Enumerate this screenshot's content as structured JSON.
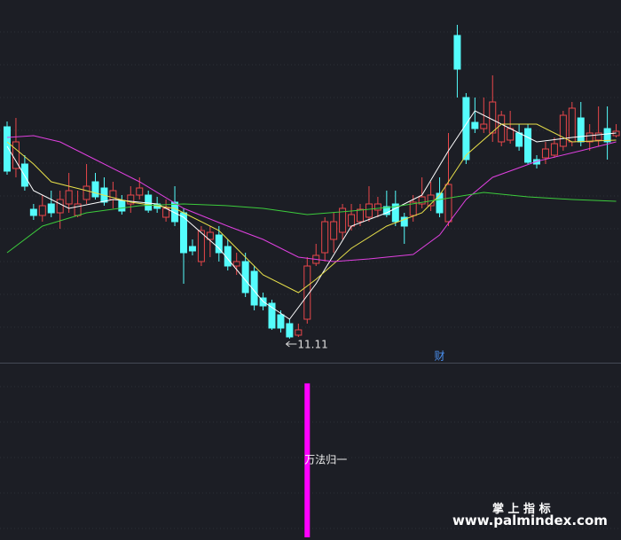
{
  "chart_data": [
    {
      "type": "candlestick",
      "ylim": [
        10.85,
        14.93
      ],
      "up_color": "#e8474a",
      "down_color": "#54fcfc",
      "open": [
        13.5,
        13.03,
        13.08,
        12.57,
        12.5,
        12.63,
        12.53,
        12.63,
        12.5,
        12.68,
        12.88,
        12.81,
        12.68,
        12.67,
        12.63,
        12.73,
        12.73,
        12.63,
        12.48,
        12.65,
        12.53,
        12.15,
        11.98,
        12.23,
        12.28,
        12.15,
        11.93,
        11.98,
        11.87,
        11.57,
        11.51,
        11.38,
        11.28,
        11.15,
        11.33,
        11.96,
        12.08,
        12.23,
        12.31,
        12.38,
        12.43,
        12.48,
        12.56,
        12.6,
        12.63,
        12.48,
        12.5,
        12.63,
        12.61,
        12.75,
        12.43,
        14.53,
        13.83,
        13.55,
        13.48,
        13.43,
        13.33,
        13.35,
        13.43,
        13.48,
        13.13,
        13.15,
        13.18,
        13.28,
        13.33,
        13.6,
        13.33,
        13.35,
        13.48,
        13.4
      ],
      "high": [
        13.56,
        13.6,
        13.18,
        12.63,
        12.73,
        12.78,
        12.78,
        12.98,
        12.78,
        13.08,
        12.98,
        12.93,
        12.88,
        12.73,
        12.83,
        12.93,
        12.78,
        12.71,
        12.68,
        12.83,
        12.58,
        12.23,
        12.38,
        12.38,
        12.38,
        12.23,
        12.08,
        12.08,
        11.93,
        11.63,
        11.55,
        11.43,
        11.33,
        11.28,
        12.03,
        12.18,
        12.48,
        12.53,
        12.63,
        12.63,
        12.63,
        12.83,
        12.71,
        12.78,
        12.78,
        12.53,
        12.73,
        12.93,
        12.88,
        12.93,
        13.43,
        14.65,
        13.88,
        13.83,
        13.83,
        14.08,
        13.68,
        13.68,
        13.53,
        13.53,
        13.18,
        13.33,
        13.38,
        13.68,
        13.78,
        13.78,
        13.53,
        13.73,
        13.73,
        13.53
      ],
      "low": [
        12.96,
        12.93,
        12.78,
        12.45,
        12.43,
        12.48,
        12.35,
        12.53,
        12.48,
        12.63,
        12.68,
        12.61,
        12.58,
        12.51,
        12.53,
        12.68,
        12.53,
        12.53,
        12.43,
        12.38,
        11.73,
        12.05,
        11.93,
        12.03,
        11.98,
        11.88,
        11.83,
        11.58,
        11.43,
        11.43,
        11.21,
        11.18,
        11.11,
        11.13,
        11.28,
        11.93,
        11.98,
        12.08,
        12.23,
        12.33,
        12.38,
        12.43,
        12.48,
        12.48,
        12.38,
        12.18,
        12.43,
        12.58,
        12.55,
        12.48,
        12.38,
        13.83,
        13.08,
        13.43,
        13.43,
        13.33,
        13.28,
        13.31,
        13.23,
        13.08,
        13.03,
        13.08,
        13.15,
        13.23,
        13.28,
        13.28,
        13.23,
        13.28,
        13.13,
        13.38
      ],
      "close": [
        13.0,
        13.33,
        12.83,
        12.5,
        12.61,
        12.53,
        12.68,
        12.78,
        12.63,
        12.83,
        12.71,
        12.65,
        12.78,
        12.55,
        12.73,
        12.81,
        12.56,
        12.58,
        12.58,
        12.43,
        12.08,
        12.1,
        12.33,
        12.31,
        12.08,
        11.93,
        11.98,
        11.63,
        11.49,
        11.48,
        11.23,
        11.23,
        11.13,
        11.21,
        11.93,
        12.05,
        12.43,
        12.43,
        12.58,
        12.51,
        12.57,
        12.63,
        12.63,
        12.51,
        12.43,
        12.38,
        12.65,
        12.71,
        12.73,
        12.53,
        12.85,
        14.15,
        13.13,
        13.48,
        13.53,
        13.78,
        13.63,
        13.48,
        13.28,
        13.1,
        13.08,
        13.25,
        13.31,
        13.63,
        13.71,
        13.33,
        13.43,
        13.43,
        13.33,
        13.45
      ],
      "lines": [
        {
          "color": "#ffffff",
          "x": [
            0,
            3,
            7,
            12,
            17,
            20,
            24,
            29,
            32,
            35,
            39,
            43,
            47,
            50,
            53,
            56,
            60,
            64,
            69
          ],
          "values": [
            13.28,
            12.78,
            12.58,
            12.68,
            12.63,
            12.48,
            12.13,
            11.53,
            11.33,
            11.73,
            12.38,
            12.53,
            12.73,
            13.23,
            13.68,
            13.53,
            13.33,
            13.38,
            13.43
          ]
        },
        {
          "color": "#e8e04a",
          "x": [
            0,
            3,
            5,
            9,
            14,
            19,
            24,
            29,
            33,
            35,
            39,
            43,
            47,
            49,
            52,
            56,
            60,
            64,
            69
          ],
          "values": [
            13.33,
            13.08,
            12.88,
            12.78,
            12.65,
            12.58,
            12.33,
            11.83,
            11.63,
            11.78,
            12.13,
            12.38,
            12.53,
            12.73,
            13.18,
            13.53,
            13.53,
            13.33,
            13.35
          ]
        },
        {
          "color": "#e040e0",
          "x": [
            0,
            3,
            6,
            10,
            15,
            20,
            25,
            29,
            33,
            37,
            41,
            46,
            49,
            52,
            55,
            60,
            65,
            69
          ],
          "values": [
            13.38,
            13.4,
            13.33,
            13.13,
            12.88,
            12.58,
            12.38,
            12.23,
            12.03,
            11.98,
            12.01,
            12.06,
            12.28,
            12.68,
            12.93,
            13.11,
            13.23,
            13.33
          ]
        },
        {
          "color": "#3ccc3c",
          "x": [
            0,
            4,
            9,
            15,
            20,
            25,
            29,
            34,
            39,
            44,
            49,
            54,
            59,
            64,
            69
          ],
          "values": [
            12.08,
            12.38,
            12.53,
            12.61,
            12.63,
            12.61,
            12.58,
            12.51,
            12.55,
            12.6,
            12.68,
            12.76,
            12.71,
            12.68,
            12.66
          ]
        }
      ],
      "annotations": [
        {
          "text": "11.11",
          "value": 11.11
        }
      ],
      "events": [
        {
          "x": 49,
          "label": "财",
          "color": "#4a90f0"
        }
      ]
    },
    {
      "type": "bar",
      "x": [
        34
      ],
      "values": [
        1
      ],
      "ylim": [
        0,
        1.1
      ],
      "color": "#ff00ff",
      "annotations": [
        {
          "text": "万法归一"
        }
      ]
    }
  ],
  "watermark": {
    "title": "掌 上 指 标",
    "url": "www.palmindex.com"
  }
}
